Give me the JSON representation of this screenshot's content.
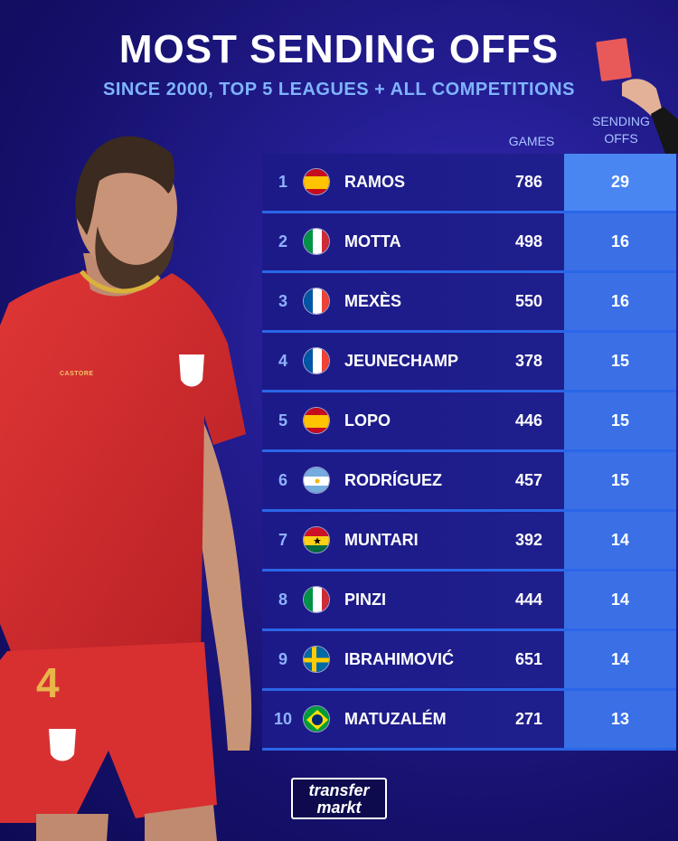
{
  "title": "MOST SENDING OFFS",
  "subtitle": "SINCE 2000, TOP 5 LEAGUES + ALL COMPETITIONS",
  "columns": {
    "games": "GAMES",
    "sending_offs_line1": "SENDING",
    "sending_offs_line2": "OFFS"
  },
  "logo": {
    "line1": "transfer",
    "line2": "markt"
  },
  "player_shirt_number": "4",
  "shirt_brand": "CASTORE",
  "colors": {
    "accent": "#3a6fe6",
    "subtitle": "#7fb4ff",
    "row": "#1c1a88",
    "shirt": "#d42a2a"
  },
  "chart_data": {
    "type": "table",
    "title": "MOST SENDING OFFS",
    "subtitle": "SINCE 2000, TOP 5 LEAGUES + ALL COMPETITIONS",
    "headers": [
      "",
      "",
      "",
      "GAMES",
      "SENDING OFFS"
    ],
    "rows": [
      {
        "rank": "1",
        "flag": "Spain",
        "name": "RAMOS",
        "games": 786,
        "sending_offs": 29
      },
      {
        "rank": "2",
        "flag": "Italy",
        "name": "MOTTA",
        "games": 498,
        "sending_offs": 16
      },
      {
        "rank": "3",
        "flag": "France",
        "name": "MEXÈS",
        "games": 550,
        "sending_offs": 16
      },
      {
        "rank": "4",
        "flag": "France",
        "name": "JEUNECHAMP",
        "games": 378,
        "sending_offs": 15
      },
      {
        "rank": "5",
        "flag": "Spain",
        "name": "LOPO",
        "games": 446,
        "sending_offs": 15
      },
      {
        "rank": "6",
        "flag": "Argentina",
        "name": "RODRÍGUEZ",
        "games": 457,
        "sending_offs": 15
      },
      {
        "rank": "7",
        "flag": "Ghana",
        "name": "MUNTARI",
        "games": 392,
        "sending_offs": 14
      },
      {
        "rank": "8",
        "flag": "Italy",
        "name": "PINZI",
        "games": 444,
        "sending_offs": 14
      },
      {
        "rank": "9",
        "flag": "Sweden",
        "name": "IBRAHIMOVIĆ",
        "games": 651,
        "sending_offs": 14
      },
      {
        "rank": "10",
        "flag": "Brazil",
        "name": "MATUZALÉM",
        "games": 271,
        "sending_offs": 13
      }
    ]
  }
}
